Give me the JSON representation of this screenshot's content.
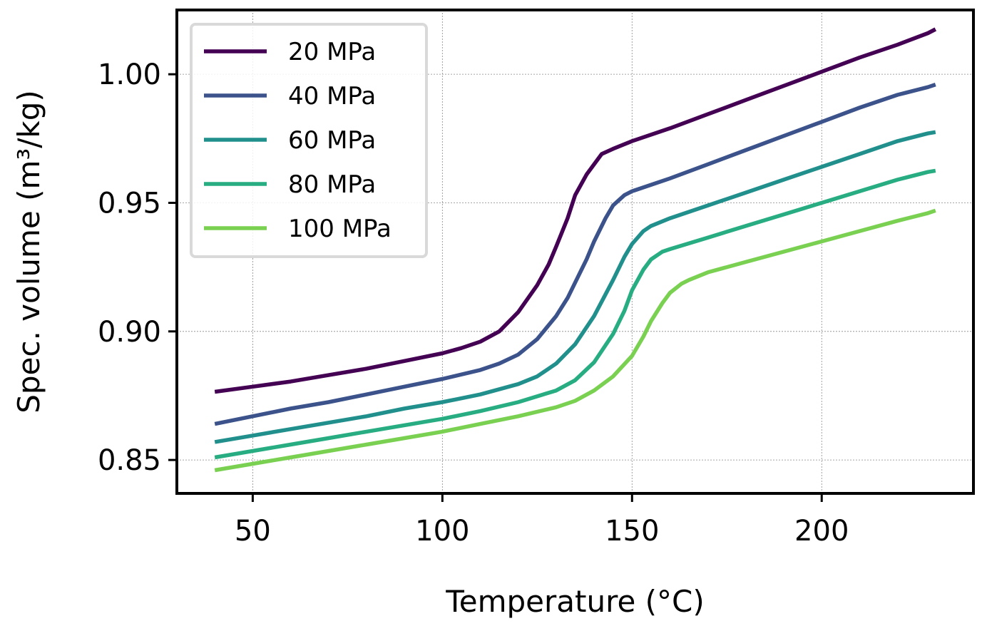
{
  "chart_data": {
    "type": "line",
    "title": "",
    "xlabel": "Temperature (°C)",
    "ylabel": "Spec. volume (m³/kg)",
    "xlim": [
      30,
      240
    ],
    "ylim": [
      0.837,
      1.025
    ],
    "xticks": [
      50,
      100,
      150,
      200
    ],
    "xtick_labels": [
      "50",
      "100",
      "150",
      "200"
    ],
    "yticks": [
      0.85,
      0.9,
      0.95,
      1.0
    ],
    "ytick_labels": [
      "0.85",
      "0.90",
      "0.95",
      "1.00"
    ],
    "grid": true,
    "legend_position": "top-left",
    "series": [
      {
        "name": "20 MPa",
        "color": "#440154",
        "x": [
          40,
          50,
          60,
          70,
          80,
          90,
          100,
          105,
          110,
          115,
          120,
          125,
          128,
          130,
          133,
          135,
          138,
          140,
          142,
          145,
          150,
          160,
          170,
          180,
          190,
          200,
          210,
          220,
          228,
          230
        ],
        "y": [
          0.8765,
          0.8785,
          0.8805,
          0.883,
          0.8855,
          0.8885,
          0.8915,
          0.8935,
          0.896,
          0.9,
          0.9075,
          0.918,
          0.926,
          0.933,
          0.944,
          0.953,
          0.961,
          0.965,
          0.969,
          0.971,
          0.974,
          0.979,
          0.9845,
          0.99,
          0.9955,
          1.001,
          1.0065,
          1.0115,
          1.016,
          1.0175
        ]
      },
      {
        "name": "40 MPa",
        "color": "#3b528b",
        "x": [
          40,
          50,
          60,
          70,
          80,
          90,
          100,
          110,
          115,
          120,
          125,
          130,
          133,
          135,
          138,
          140,
          143,
          145,
          148,
          150,
          160,
          170,
          180,
          190,
          200,
          210,
          220,
          228,
          230
        ],
        "y": [
          0.864,
          0.867,
          0.87,
          0.8725,
          0.8755,
          0.8785,
          0.8815,
          0.885,
          0.8875,
          0.891,
          0.897,
          0.906,
          0.913,
          0.919,
          0.928,
          0.935,
          0.944,
          0.949,
          0.953,
          0.9545,
          0.9595,
          0.965,
          0.9705,
          0.976,
          0.9815,
          0.987,
          0.992,
          0.995,
          0.996
        ]
      },
      {
        "name": "60 MPa",
        "color": "#21908d",
        "x": [
          40,
          50,
          60,
          70,
          80,
          90,
          100,
          110,
          120,
          125,
          130,
          135,
          140,
          145,
          148,
          150,
          153,
          155,
          160,
          170,
          180,
          190,
          200,
          210,
          220,
          228,
          230
        ],
        "y": [
          0.857,
          0.8595,
          0.862,
          0.8645,
          0.867,
          0.87,
          0.8725,
          0.8755,
          0.8795,
          0.8825,
          0.8875,
          0.895,
          0.906,
          0.92,
          0.929,
          0.934,
          0.939,
          0.941,
          0.944,
          0.949,
          0.954,
          0.959,
          0.964,
          0.969,
          0.974,
          0.977,
          0.9775
        ]
      },
      {
        "name": "80 MPa",
        "color": "#27ad81",
        "x": [
          40,
          50,
          60,
          70,
          80,
          90,
          100,
          110,
          120,
          130,
          135,
          140,
          145,
          148,
          150,
          153,
          155,
          158,
          160,
          170,
          180,
          190,
          200,
          210,
          220,
          228,
          230
        ],
        "y": [
          0.851,
          0.8535,
          0.856,
          0.8585,
          0.861,
          0.8635,
          0.866,
          0.869,
          0.8725,
          0.877,
          0.881,
          0.888,
          0.899,
          0.908,
          0.916,
          0.924,
          0.928,
          0.931,
          0.932,
          0.9365,
          0.941,
          0.9455,
          0.95,
          0.9545,
          0.959,
          0.962,
          0.9625
        ]
      },
      {
        "name": "100 MPa",
        "color": "#7ad151",
        "x": [
          40,
          50,
          60,
          70,
          80,
          90,
          100,
          110,
          120,
          130,
          135,
          140,
          145,
          150,
          153,
          155,
          158,
          160,
          163,
          165,
          170,
          180,
          190,
          200,
          210,
          220,
          228,
          230
        ],
        "y": [
          0.846,
          0.8485,
          0.851,
          0.8535,
          0.856,
          0.8585,
          0.861,
          0.864,
          0.867,
          0.8705,
          0.873,
          0.877,
          0.8825,
          0.8905,
          0.898,
          0.904,
          0.911,
          0.915,
          0.9185,
          0.92,
          0.923,
          0.927,
          0.931,
          0.935,
          0.939,
          0.943,
          0.946,
          0.947
        ]
      }
    ]
  }
}
